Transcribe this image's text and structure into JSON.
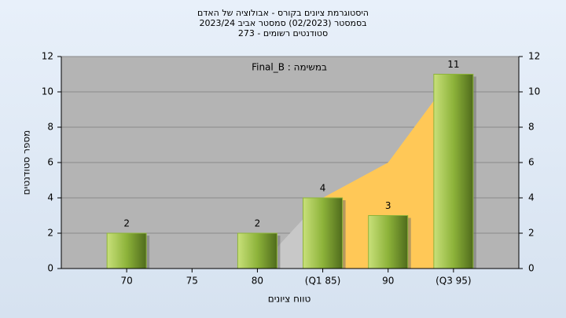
{
  "chart_data": {
    "type": "bar",
    "title": [
      "היסטוגרמת ציונים בקורס - אבולוציה של האדם",
      "בסמסטר (02/2023) סמסטר אביב 2023/24",
      "סטודנטים רשומים - 273"
    ],
    "annotation": "במשימה : Final_B",
    "x_label": "טווח ציונים",
    "y_label": "מספר סטודנטים",
    "x": [
      70,
      75,
      80,
      85,
      90,
      95
    ],
    "values": [
      2,
      null,
      2,
      4,
      3,
      11
    ],
    "color": "#8db33a",
    "areas": [
      {
        "color": "#c8c8c8",
        "values": [
          null,
          null,
          0,
          4,
          null,
          null
        ]
      },
      {
        "color": "#ffc857",
        "values": [
          null,
          null,
          null,
          4,
          6,
          11
        ]
      }
    ],
    "xlim": [
      65,
      100
    ],
    "xticks": [
      70,
      75,
      80,
      {
        "value": 85,
        "label": "(Q1 85)"
      },
      90,
      {
        "value": 95,
        "label": "(Q3 95)"
      }
    ],
    "ylim": [
      0,
      12
    ],
    "yticks": [
      0,
      2,
      4,
      6,
      8,
      10,
      12
    ],
    "y2lim": [
      0,
      12
    ],
    "y2ticks": [
      0,
      2,
      4,
      6,
      8,
      10,
      12
    ],
    "grid": true
  }
}
